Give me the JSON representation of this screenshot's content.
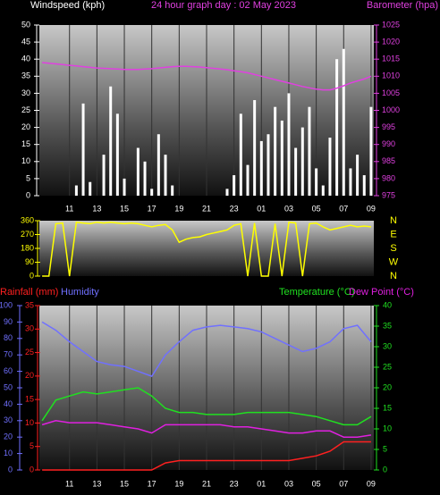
{
  "chart_data": [
    {
      "type": "combo",
      "title": "24 hour graph day : 02 May 2023",
      "x": [
        9,
        9.5,
        10,
        10.5,
        11,
        11.5,
        12,
        12.5,
        13,
        13.5,
        14,
        14.5,
        15,
        15.5,
        16,
        16.5,
        17,
        17.5,
        18,
        18.5,
        19,
        19.5,
        20,
        20.5,
        21,
        21.5,
        22,
        22.5,
        23,
        23.5,
        24,
        24.5,
        25,
        25.5,
        26,
        26.5,
        27,
        27.5,
        28,
        28.5,
        29,
        29.5,
        30,
        30.5,
        31,
        31.5,
        32,
        32.5,
        33
      ],
      "xlim": [
        8.8,
        33.2
      ],
      "xticks": [
        11,
        13,
        15,
        17,
        19,
        21,
        23,
        {
          "value": 25,
          "label": "01"
        },
        {
          "value": 27,
          "label": "03"
        },
        {
          "value": 29,
          "label": "05"
        },
        {
          "value": 31,
          "label": "07"
        },
        {
          "value": 33,
          "label": "09"
        }
      ],
      "ylim": [
        0,
        50
      ],
      "yticks": [
        0,
        5,
        10,
        15,
        20,
        25,
        30,
        35,
        40,
        45,
        50
      ],
      "y2lim": [
        975,
        1025
      ],
      "y2ticks": [
        975,
        980,
        985,
        990,
        995,
        1000,
        1005,
        1010,
        1015,
        1020,
        1025
      ],
      "series": [
        {
          "name": "Windspeed (kph)",
          "kind": "bar",
          "color": "#ffffff",
          "values": [
            0,
            0,
            0,
            0,
            0,
            3,
            27,
            4,
            0,
            12,
            32,
            24,
            5,
            0,
            14,
            10,
            2,
            18,
            12,
            3,
            0,
            0,
            0,
            0,
            0,
            0,
            0,
            2,
            6,
            24,
            9,
            28,
            16,
            18,
            26,
            22,
            30,
            14,
            20,
            26,
            8,
            3,
            17,
            40,
            43,
            8,
            12,
            6,
            26
          ]
        },
        {
          "name": "Barometer (hpa)",
          "kind": "line",
          "axis": "y2",
          "color": "#e040e0",
          "values": [
            1014,
            1013.8,
            1013.6,
            1013.4,
            1013.2,
            1013,
            1012.8,
            1012.6,
            1012.4,
            1012.3,
            1012.2,
            1012.1,
            1012,
            1012,
            1012,
            1012.1,
            1012.2,
            1012.4,
            1012.6,
            1012.8,
            1012.9,
            1012.9,
            1012.8,
            1012.7,
            1012.5,
            1012.3,
            1012.1,
            1011.9,
            1011.6,
            1011.3,
            1011,
            1010.5,
            1010,
            1009.5,
            1009,
            1008.5,
            1008,
            1007.5,
            1007,
            1006.6,
            1006.2,
            1006,
            1006,
            1006.5,
            1007.2,
            1008,
            1008.6,
            1009.2,
            1010
          ]
        }
      ]
    },
    {
      "type": "direction",
      "x": [
        9,
        9.5,
        10,
        10.5,
        11,
        11.5,
        12,
        12.5,
        13,
        13.5,
        14,
        14.5,
        15,
        15.5,
        16,
        16.5,
        17,
        17.5,
        18,
        18.5,
        19,
        19.5,
        20,
        20.5,
        21,
        21.5,
        22,
        22.5,
        23,
        23.5,
        24,
        24.5,
        25,
        25.5,
        26,
        26.5,
        27,
        27.5,
        28,
        28.5,
        29,
        29.5,
        30,
        30.5,
        31,
        31.5,
        32,
        32.5,
        33
      ],
      "xlim": [
        8.8,
        33.2
      ],
      "ylim": [
        0,
        360
      ],
      "yticks": [
        0,
        90,
        180,
        270,
        360
      ],
      "direction_labels": [
        "N",
        "W",
        "S",
        "E",
        "N"
      ],
      "series": [
        {
          "color": "#ffff00",
          "values": [
            0,
            0,
            340,
            345,
            0,
            350,
            345,
            340,
            350,
            345,
            350,
            345,
            340,
            345,
            340,
            330,
            320,
            330,
            335,
            300,
            220,
            240,
            250,
            255,
            270,
            280,
            290,
            300,
            330,
            340,
            0,
            345,
            0,
            0,
            340,
            0,
            350,
            345,
            0,
            340,
            345,
            320,
            300,
            310,
            320,
            330,
            320,
            325,
            320
          ]
        }
      ]
    },
    {
      "type": "multi",
      "x": [
        9,
        10,
        11,
        12,
        13,
        14,
        15,
        16,
        17,
        18,
        19,
        20,
        21,
        22,
        23,
        24,
        25,
        26,
        27,
        28,
        29,
        30,
        31,
        32,
        33
      ],
      "xlim": [
        8.8,
        33.2
      ],
      "xticks": [
        11,
        13,
        15,
        17,
        19,
        21,
        23,
        {
          "value": 25,
          "label": "01"
        },
        {
          "value": 27,
          "label": "03"
        },
        {
          "value": 29,
          "label": "05"
        },
        {
          "value": 31,
          "label": "07"
        },
        {
          "value": 33,
          "label": "09"
        }
      ],
      "ylim": [
        0,
        35
      ],
      "yticks": [
        0,
        5,
        10,
        15,
        20,
        25,
        30,
        35
      ],
      "y2lim": [
        0,
        40
      ],
      "y2ticks": [
        0,
        5,
        10,
        15,
        20,
        25,
        30,
        35,
        40
      ],
      "y3lim": [
        0,
        100
      ],
      "y3ticks": [
        0,
        10,
        20,
        30,
        40,
        50,
        60,
        70,
        80,
        90,
        100
      ],
      "series": [
        {
          "name": "Rainfall (mm)",
          "color": "#ff2020",
          "values": [
            0,
            0,
            0,
            0,
            0,
            0,
            0,
            0,
            0,
            1.5,
            2,
            2,
            2,
            2,
            2,
            2,
            2,
            2,
            2,
            2.5,
            3,
            4,
            6,
            6,
            6
          ]
        },
        {
          "name": "Humidity",
          "axis": "y3",
          "color": "#7070ff",
          "values": [
            90,
            85,
            78,
            72,
            66,
            64,
            63,
            60,
            57,
            70,
            78,
            85,
            87,
            88,
            87,
            86,
            84,
            80,
            76,
            72,
            74,
            78,
            86,
            88,
            78
          ]
        },
        {
          "name": "Temperature (°C)",
          "axis": "y2",
          "color": "#20e020",
          "values": [
            12,
            17,
            18,
            19,
            18.5,
            19,
            19.5,
            20,
            18,
            15,
            14,
            14,
            13.5,
            13.5,
            13.5,
            14,
            14,
            14,
            14,
            13.5,
            13,
            12,
            11,
            11,
            13
          ]
        },
        {
          "name": "Dew Point (°C)",
          "axis": "y2",
          "color": "#e020e0",
          "values": [
            11,
            12,
            11.5,
            11.5,
            11.5,
            11,
            10.5,
            10,
            9,
            11,
            11,
            11,
            11,
            11,
            10.5,
            10.5,
            10,
            9.5,
            9,
            9,
            9.5,
            9.5,
            8,
            8,
            8.5
          ]
        }
      ]
    }
  ]
}
